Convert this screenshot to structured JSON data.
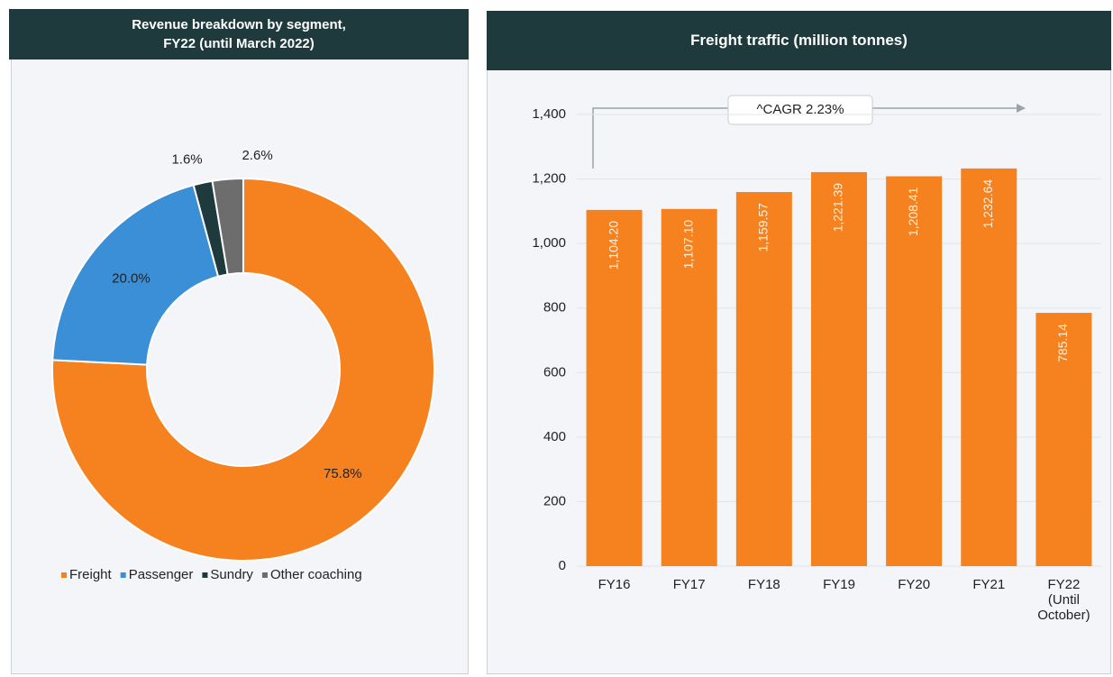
{
  "chart_data": [
    {
      "type": "pie",
      "title": "Revenue breakdown by segment, FY22 (until March 2022)",
      "categories": [
        "Freight",
        "Passenger",
        "Sundry",
        "Other coaching"
      ],
      "values": [
        75.8,
        20,
        1.6,
        2.6
      ],
      "value_labels": [
        "75.8%",
        "20.0%",
        "1.6%",
        "2.6%"
      ],
      "colors": [
        "#f5821f",
        "#3a8fd6",
        "#1f3a3d",
        "#6d6d6d"
      ],
      "donut": true
    },
    {
      "type": "bar",
      "title": "Freight traffic (million tonnes)",
      "categories": [
        "FY16",
        "FY17",
        "FY18",
        "FY19",
        "FY20",
        "FY21",
        "FY22 (Until October)"
      ],
      "values": [
        1104.2,
        1107.1,
        1159.57,
        1221.39,
        1208.41,
        1232.64,
        785.14
      ],
      "value_labels": [
        "1,104.20",
        "1,107.10",
        "1,159.57",
        "1,221.39",
        "1,208.41",
        "1,232.64",
        "785.14"
      ],
      "color": "#f5821f",
      "ylim": [
        0,
        1400
      ],
      "yticks": [
        0,
        200,
        400,
        600,
        800,
        {
          "value": 1000,
          "label": "1,000"
        },
        {
          "value": 1200,
          "label": "1,200"
        },
        {
          "value": 1400,
          "label": "1,400"
        }
      ],
      "grid": true,
      "annotation": "^CAGR 2.23%"
    }
  ]
}
